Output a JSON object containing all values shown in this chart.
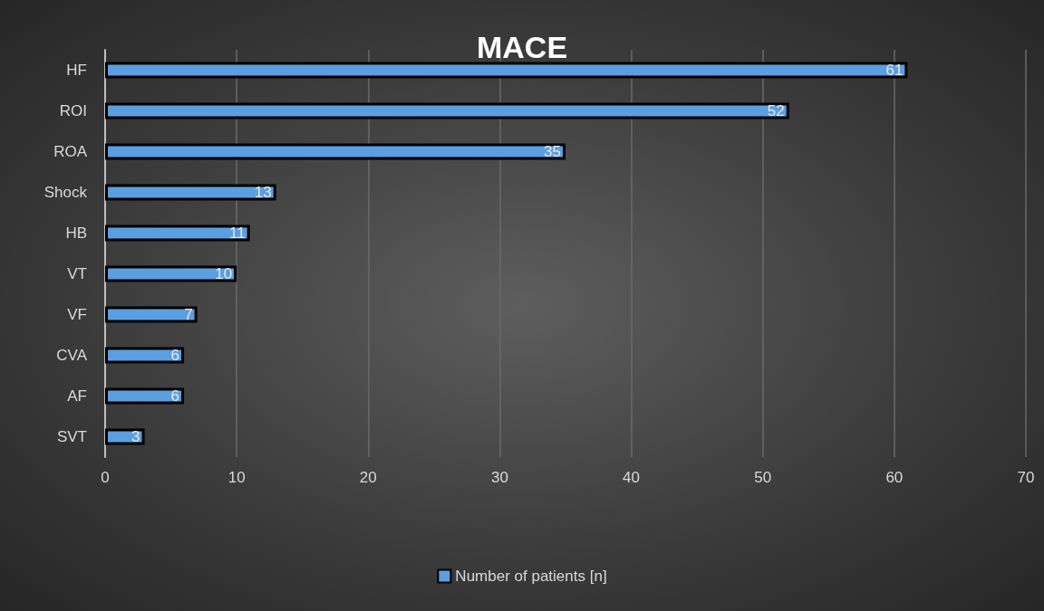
{
  "chart_data": {
    "type": "bar",
    "orientation": "horizontal",
    "title": "MACE",
    "categories": [
      "HF",
      "ROI",
      "ROA",
      "Shock",
      "HB",
      "VT",
      "VF",
      "CVA",
      "AF",
      "SVT"
    ],
    "series": [
      {
        "name": "Number of patients [n]",
        "color": "#5b9fe0",
        "values": [
          61,
          52,
          35,
          13,
          11,
          10,
          7,
          6,
          6,
          3
        ]
      }
    ],
    "xlim": [
      0,
      70
    ],
    "xticks": [
      0,
      10,
      20,
      30,
      40,
      50,
      60,
      70
    ],
    "grid": "x",
    "legend": "bottom",
    "data_labels": true
  }
}
